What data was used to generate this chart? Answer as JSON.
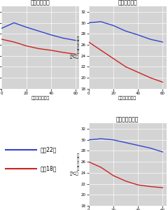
{
  "titles": [
    "木材（ナラ）",
    "コンクリート",
    "ビニールタイル"
  ],
  "xlabel": "経過時間（分）",
  "ylabel_line1": "皮",
  "ylabel_line2": "膚",
  "ylabel_line3": "温",
  "ylabel_line4": "度",
  "ylabel_unit": "（℃）",
  "x_ticks": [
    0,
    20,
    40,
    60
  ],
  "ylim": [
    18,
    33
  ],
  "yticks": [
    18,
    20,
    22,
    24,
    26,
    28,
    30,
    32
  ],
  "legend_blue": "室温22度",
  "legend_red": "室温18度",
  "color_blue": "#3344cc",
  "color_red": "#cc2222",
  "bg_color": "#d4d4d4",
  "nara_blue_x": [
    0,
    10,
    20,
    30,
    40,
    50,
    60
  ],
  "nara_blue_y": [
    29.0,
    30.0,
    29.2,
    28.5,
    27.8,
    27.2,
    26.8
  ],
  "nara_red_x": [
    0,
    10,
    20,
    30,
    40,
    50,
    60
  ],
  "nara_red_y": [
    27.0,
    26.5,
    25.8,
    25.3,
    25.0,
    24.6,
    24.3
  ],
  "concrete_blue_x": [
    0,
    10,
    20,
    30,
    40,
    50,
    60
  ],
  "concrete_blue_y": [
    30.0,
    30.2,
    29.5,
    28.5,
    27.8,
    27.0,
    26.5
  ],
  "concrete_red_x": [
    0,
    10,
    20,
    30,
    40,
    50,
    60
  ],
  "concrete_red_y": [
    26.5,
    25.0,
    23.5,
    22.0,
    21.0,
    20.0,
    19.2
  ],
  "vinyl_blue_x": [
    0,
    10,
    20,
    30,
    40,
    50,
    60
  ],
  "vinyl_blue_y": [
    30.0,
    30.2,
    30.0,
    29.5,
    29.0,
    28.5,
    27.8
  ],
  "vinyl_red_x": [
    0,
    10,
    20,
    30,
    40,
    50,
    60
  ],
  "vinyl_red_y": [
    26.0,
    25.0,
    23.5,
    22.5,
    21.8,
    21.5,
    21.3
  ]
}
